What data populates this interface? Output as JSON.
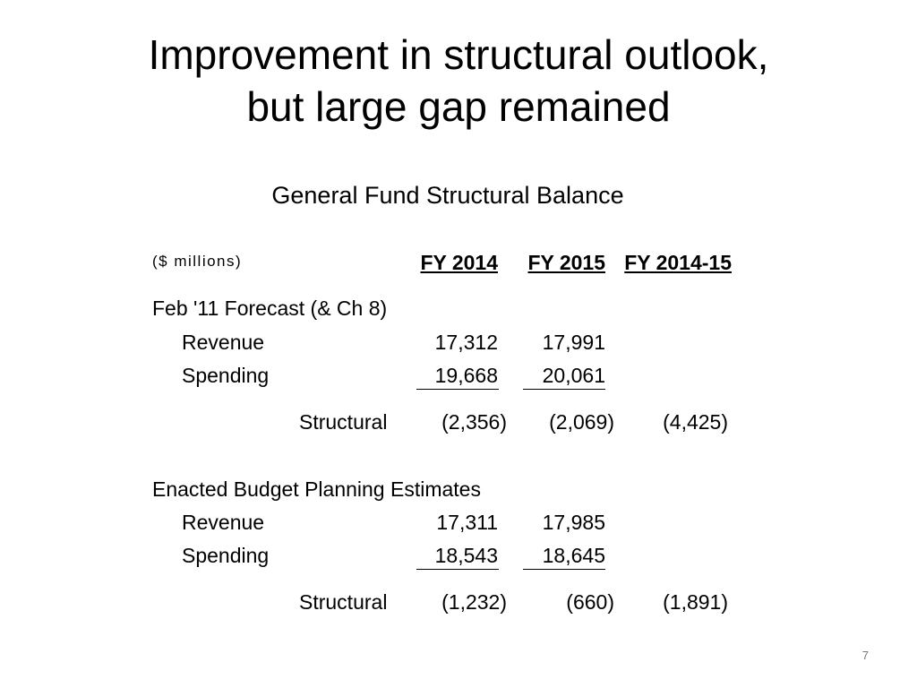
{
  "title": [
    "Improvement in structural outlook,",
    "but large gap remained"
  ],
  "subtitle": "General Fund Structural Balance",
  "units": "($ millions)",
  "columns": [
    "FY 2014",
    "FY 2015",
    "FY 2014-15"
  ],
  "sections": [
    {
      "label": "Feb '11 Forecast (& Ch 8)",
      "revenue": {
        "label": "Revenue",
        "values": [
          "17,312",
          "17,991"
        ]
      },
      "spending": {
        "label": "Spending",
        "values": [
          "19,668",
          "20,061"
        ]
      },
      "structural": {
        "label": "Structural",
        "values": [
          "(2,356)",
          "(2,069)",
          "(4,425)"
        ]
      }
    },
    {
      "label": "Enacted  Budget Planning Estimates",
      "revenue": {
        "label": "Revenue",
        "values": [
          "17,311",
          "17,985"
        ]
      },
      "spending": {
        "label": "Spending",
        "values": [
          "18,543",
          "18,645"
        ]
      },
      "structural": {
        "label": "Structural",
        "values": [
          "(1,232)",
          "(660)",
          "(1,891)"
        ]
      }
    }
  ],
  "page_number": "7"
}
